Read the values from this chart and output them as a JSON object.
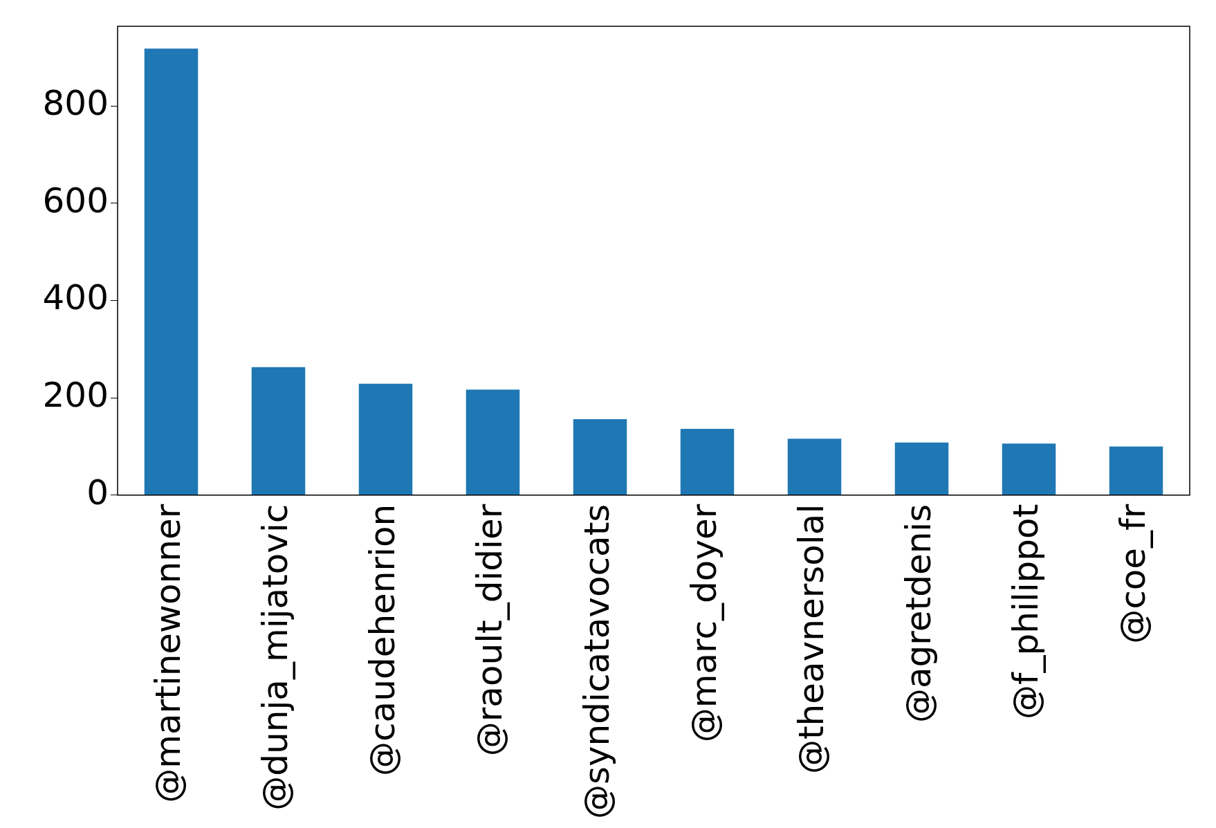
{
  "chart_data": {
    "type": "bar",
    "categories": [
      "@martinewonner",
      "@dunja_mijatovic",
      "@caudehenrion",
      "@raoult_didier",
      "@syndicatavocats",
      "@marc_doyer",
      "@theavnersolal",
      "@agretdenis",
      "@f_philippot",
      "@coe_fr"
    ],
    "values": [
      918,
      263,
      229,
      217,
      156,
      136,
      116,
      108,
      106,
      100
    ],
    "color": "#1f77b4",
    "ylim": [
      0,
      964
    ],
    "yticks": [
      0,
      200,
      400,
      600,
      800
    ],
    "grid": false,
    "legend": false
  }
}
